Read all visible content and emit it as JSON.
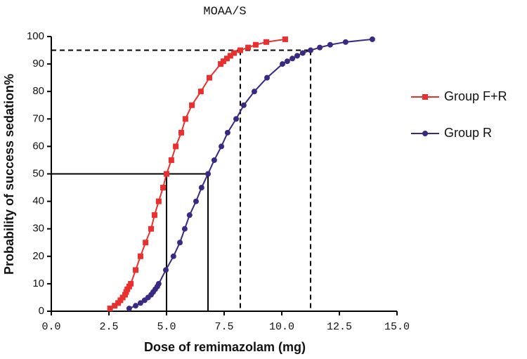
{
  "chart_data": {
    "type": "line",
    "title": "MOAA/S",
    "xlabel": "Dose of remimazolam (mg)",
    "ylabel": "Probability of success sedation%",
    "xlim": [
      0,
      15
    ],
    "xticks": [
      {
        "value": 0,
        "label": "0.0"
      },
      2.5,
      {
        "value": 5,
        "label": "5.0"
      },
      7.5,
      {
        "value": 10,
        "label": "10.0"
      },
      12.5,
      {
        "value": 15,
        "label": "15.0"
      }
    ],
    "ylim": [
      0,
      100
    ],
    "yticks": [
      0,
      10,
      20,
      30,
      40,
      50,
      60,
      70,
      80,
      90,
      100
    ],
    "legend": "right",
    "series": [
      {
        "name": "Group F+R",
        "color": "#e8312f",
        "marker": "square",
        "x": [
          2.55,
          2.75,
          2.9,
          3.0,
          3.1,
          3.2,
          3.25,
          3.3,
          3.38,
          3.45,
          3.66,
          3.87,
          4.09,
          4.33,
          4.48,
          4.66,
          4.85,
          5.0,
          5.21,
          5.4,
          5.64,
          5.82,
          6.1,
          6.49,
          6.86,
          7.35,
          7.47,
          7.62,
          7.77,
          7.93,
          8.2,
          8.54,
          8.87,
          9.33,
          10.15
        ],
        "values": [
          1,
          2,
          3,
          4,
          5,
          6,
          7,
          8,
          9,
          10,
          15,
          20,
          25,
          30,
          35,
          40,
          45,
          50,
          55,
          60,
          65,
          70,
          75,
          80,
          85,
          90,
          91,
          92,
          93,
          94,
          95,
          96,
          97,
          98,
          99
        ]
      },
      {
        "name": "Group R",
        "color": "#3a2883",
        "marker": "circle",
        "x": [
          3.38,
          3.66,
          3.87,
          4.05,
          4.2,
          4.33,
          4.42,
          4.51,
          4.6,
          4.66,
          4.97,
          5.3,
          5.58,
          5.79,
          6.0,
          6.28,
          6.52,
          6.8,
          7.07,
          7.38,
          7.65,
          8.02,
          8.35,
          8.81,
          9.36,
          10.03,
          10.24,
          10.46,
          10.67,
          10.91,
          11.25,
          11.65,
          12.1,
          12.77,
          13.93
        ],
        "values": [
          1,
          2,
          3,
          4,
          5,
          6,
          7,
          8,
          9,
          10,
          15,
          20,
          25,
          30,
          35,
          40,
          45,
          50,
          55,
          60,
          65,
          70,
          75,
          80,
          85,
          90,
          91,
          92,
          93,
          94,
          95,
          96,
          97,
          98,
          99
        ]
      }
    ],
    "reference_lines": [
      {
        "y": 95,
        "x": [
          8.2,
          11.25
        ],
        "style": "dashed"
      },
      {
        "y": 50,
        "x": [
          5.0,
          6.8
        ],
        "style": "solid"
      }
    ]
  }
}
